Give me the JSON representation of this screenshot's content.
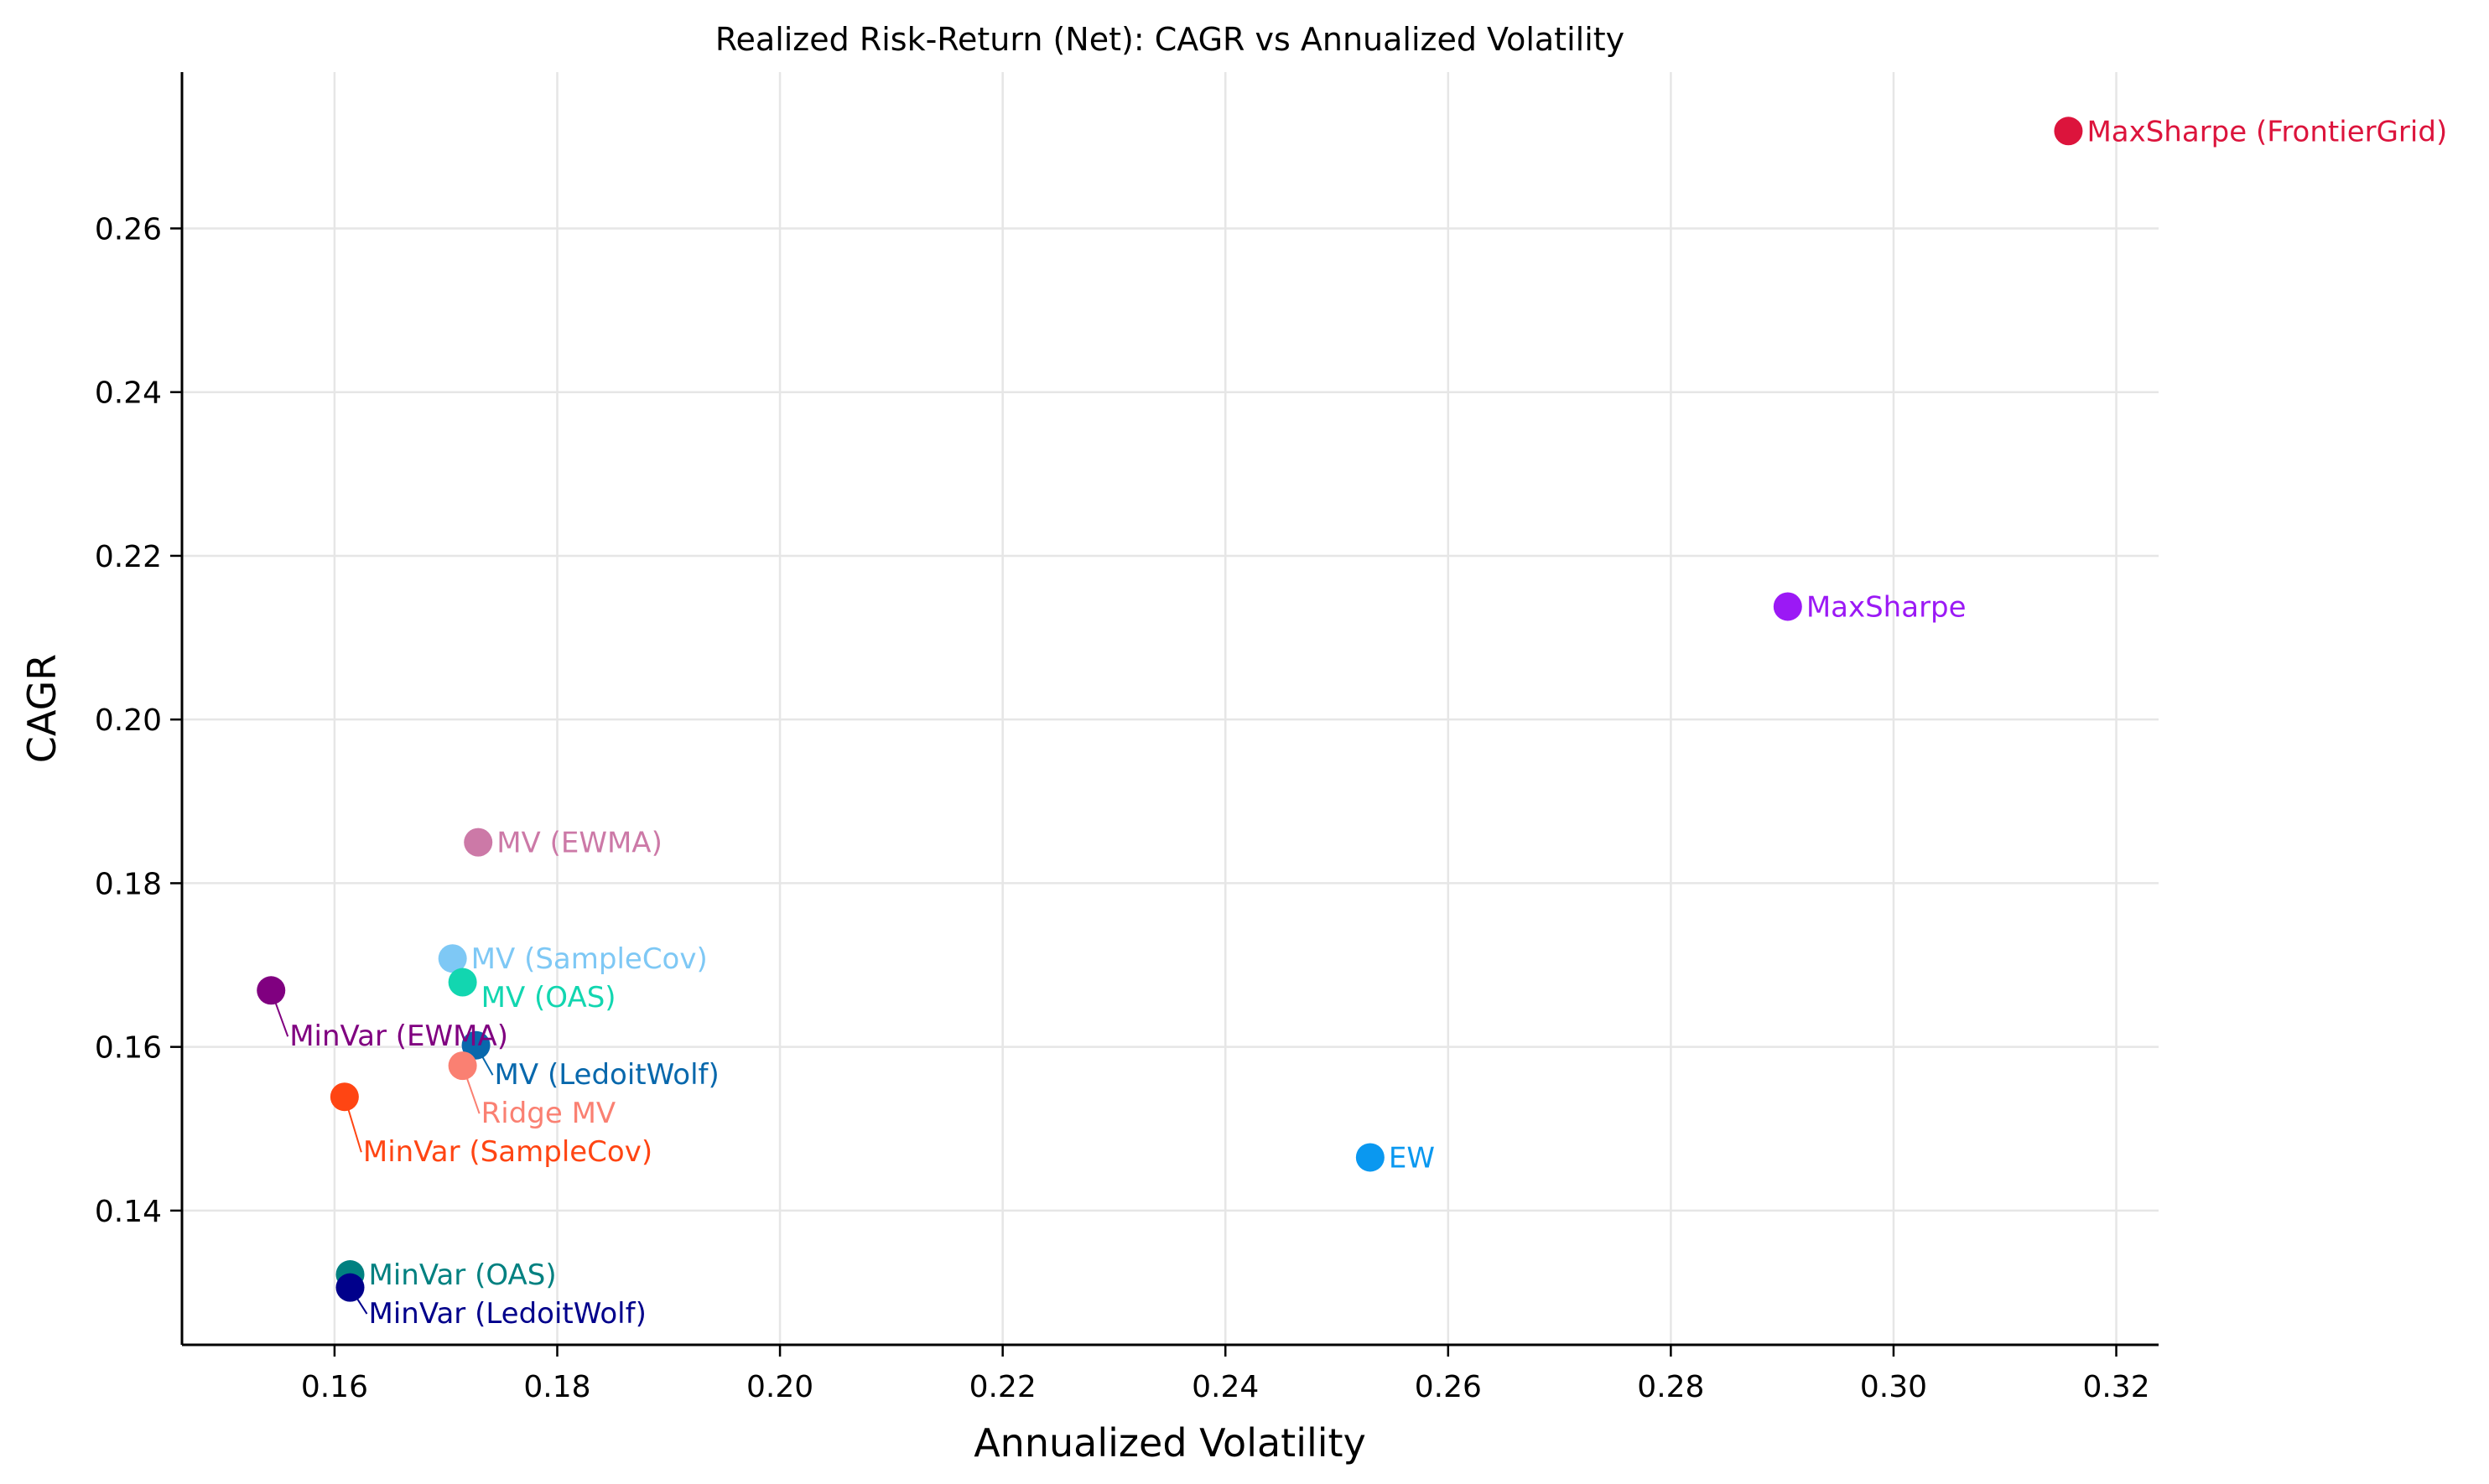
{
  "chart_data": {
    "type": "scatter",
    "title": "Realized Risk-Return (Net): CAGR vs Annualized Volatility",
    "xlabel": "Annualized Volatility",
    "ylabel": "CAGR",
    "xlim": [
      0.1463,
      0.3238
    ],
    "ylim": [
      0.1236,
      0.2791
    ],
    "grid": true,
    "legend": "none (points labeled inline)",
    "x_ticks": [
      "0.16",
      "0.18",
      "0.20",
      "0.22",
      "0.24",
      "0.26",
      "0.28",
      "0.30",
      "0.32"
    ],
    "y_ticks": [
      "0.14",
      "0.16",
      "0.18",
      "0.20",
      "0.22",
      "0.24",
      "0.26"
    ],
    "points": [
      {
        "label": "MaxSharpe (FrontierGrid)",
        "x": 0.3157,
        "y": 0.2719,
        "color": "#DC143C"
      },
      {
        "label": "MaxSharpe",
        "x": 0.2905,
        "y": 0.2138,
        "color": "#9B19F5"
      },
      {
        "label": "MV (EWMA)",
        "x": 0.1729,
        "y": 0.185,
        "color": "#CC79A7"
      },
      {
        "label": "MV (SampleCov)",
        "x": 0.1706,
        "y": 0.1708,
        "color": "#7EC8F5"
      },
      {
        "label": "MV (OAS)",
        "x": 0.1715,
        "y": 0.1679,
        "color": "#12D6B0"
      },
      {
        "label": "MinVar (EWMA)",
        "x": 0.1543,
        "y": 0.1669,
        "color": "#800080"
      },
      {
        "label": "MV (LedoitWolf)",
        "x": 0.1727,
        "y": 0.1602,
        "color": "#0868AC"
      },
      {
        "label": "Ridge MV",
        "x": 0.1715,
        "y": 0.1577,
        "color": "#FA8072"
      },
      {
        "label": "MinVar (SampleCov)",
        "x": 0.1609,
        "y": 0.1539,
        "color": "#FF4513"
      },
      {
        "label": "EW",
        "x": 0.253,
        "y": 0.1465,
        "color": "#0A98F0"
      },
      {
        "label": "MinVar (OAS)",
        "x": 0.1614,
        "y": 0.1322,
        "color": "#008080"
      },
      {
        "label": "MinVar (LedoitWolf)",
        "x": 0.1614,
        "y": 0.1306,
        "color": "#00008B"
      }
    ]
  }
}
